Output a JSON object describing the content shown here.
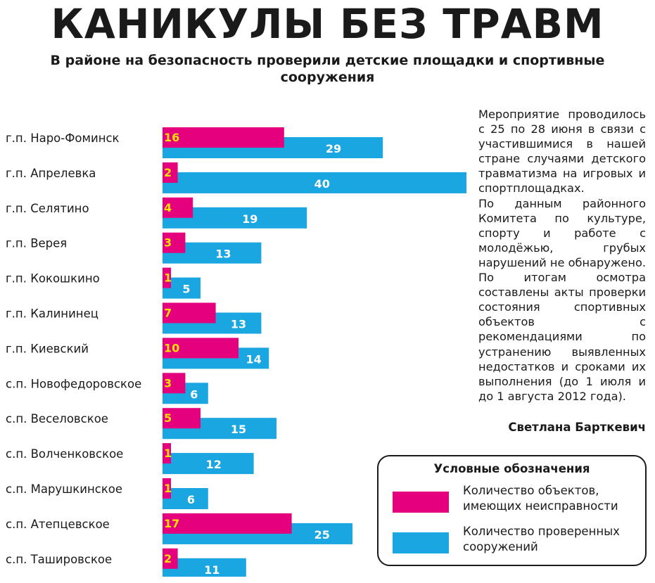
{
  "headline": "КАНИКУЛЫ БЕЗ ТРАВМ",
  "subtitle": "В районе на безопасность проверили детские площадки и спортивные сооружения",
  "colors": {
    "faulty": "#e5007e",
    "checked": "#1aa6e0",
    "faulty_value_text": "#ffe200",
    "checked_value_text": "#ffffff"
  },
  "chart_data": {
    "type": "bar",
    "orientation": "horizontal",
    "categories": [
      "г.п. Наро-Фоминск",
      "г.п. Апрелевка",
      "г.п. Селятино",
      "г.п. Верея",
      "г.п. Кокошкино",
      "г.п. Калининец",
      "г.п. Киевский",
      "с.п. Новофедоровское",
      "с.п. Веселовское",
      "с.п. Волченковское",
      "с.п. Марушкинское",
      "с.п. Атепцевское",
      "с.п. Таshировское"
    ],
    "series": [
      {
        "name": "Количество объектов, имеющих неисправности",
        "values": [
          16,
          2,
          4,
          3,
          1,
          7,
          10,
          3,
          5,
          1,
          1,
          17,
          2
        ]
      },
      {
        "name": "Количество проверенных сооружений",
        "values": [
          29,
          40,
          19,
          13,
          5,
          13,
          14,
          6,
          15,
          12,
          6,
          25,
          11
        ]
      }
    ],
    "xlim": [
      0,
      40
    ],
    "grid": false,
    "legend_position": "bottom-right"
  },
  "article": {
    "paragraphs": [
      "Мероприятие проводилось с 25 по 28 июня в связи с участившимися в нашей стране случаями детского травматизма на игровых и спортплощадках.",
      "По данным районного Комитета по культуре, спорту и работе с молодёжью, грубых нарушений не обнаружено.",
      "По итогам осмотра составлены акты проверки состояния спортивных объектов с рекомендациями по устранению выявленных недостатков и сроками их выполнения (до 1 июля и до 1 августа 2012 года)."
    ],
    "author": "Светлана Барткевич"
  },
  "legend": {
    "title": "Условные обозначения",
    "items": [
      {
        "label": "Количество объектов, имеющих неисправности"
      },
      {
        "label": "Количество проверенных сооружений"
      }
    ]
  }
}
